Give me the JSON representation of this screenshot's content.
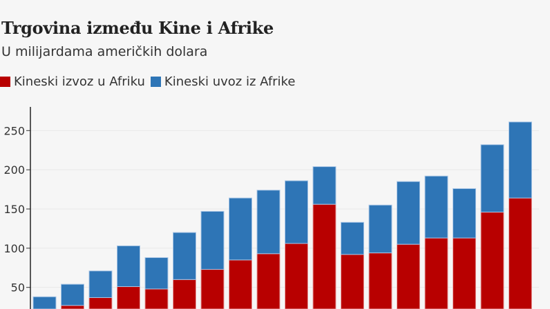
{
  "chart_data": {
    "type": "bar",
    "stacked": true,
    "title": "Trgovina između Kine i Afrike",
    "subtitle": "U milijardama američkih dolara",
    "ylim": [
      0,
      280
    ],
    "yticks": [
      50,
      100,
      150,
      200,
      250
    ],
    "grid": true,
    "legend_placement": "top-left",
    "series": [
      {
        "name": "Kineski izvoz u Afriku",
        "color": "#b80000",
        "values": [
          19,
          27,
          37,
          51,
          48,
          60,
          73,
          85,
          93,
          106,
          156,
          92,
          94,
          105,
          113,
          113,
          146,
          164
        ]
      },
      {
        "name": "Kineski uvoz iz Afrike",
        "color": "#2e75b6",
        "values": [
          19,
          27,
          34,
          52,
          40,
          60,
          74,
          79,
          81,
          80,
          48,
          41,
          61,
          80,
          79,
          63,
          86,
          97
        ]
      }
    ]
  }
}
